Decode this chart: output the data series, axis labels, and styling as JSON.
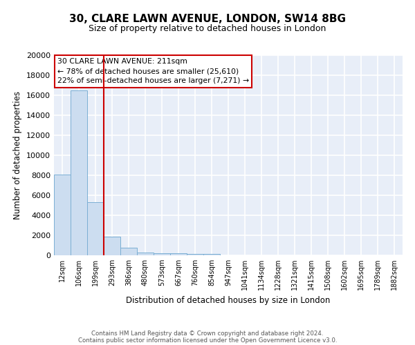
{
  "title1": "30, CLARE LAWN AVENUE, LONDON, SW14 8BG",
  "title2": "Size of property relative to detached houses in London",
  "xlabel": "Distribution of detached houses by size in London",
  "ylabel": "Number of detached properties",
  "categories": [
    "12sqm",
    "106sqm",
    "199sqm",
    "293sqm",
    "386sqm",
    "480sqm",
    "573sqm",
    "667sqm",
    "760sqm",
    "854sqm",
    "947sqm",
    "1041sqm",
    "1134sqm",
    "1228sqm",
    "1321sqm",
    "1415sqm",
    "1508sqm",
    "1602sqm",
    "1695sqm",
    "1789sqm",
    "1882sqm"
  ],
  "values": [
    8100,
    16500,
    5300,
    1850,
    750,
    300,
    230,
    175,
    150,
    130,
    0,
    0,
    0,
    0,
    0,
    0,
    0,
    0,
    0,
    0,
    0
  ],
  "bar_color": "#ccddf0",
  "bar_edge_color": "#7bafd4",
  "red_line_index": 2,
  "annotation_line1": "30 CLARE LAWN AVENUE: 211sqm",
  "annotation_line2": "← 78% of detached houses are smaller (25,610)",
  "annotation_line3": "22% of semi-detached houses are larger (7,271) →",
  "annotation_box_color": "#ffffff",
  "annotation_box_edge": "#cc0000",
  "background_color": "#e8eef8",
  "grid_color": "#ffffff",
  "ylim": [
    0,
    20000
  ],
  "yticks": [
    0,
    2000,
    4000,
    6000,
    8000,
    10000,
    12000,
    14000,
    16000,
    18000,
    20000
  ],
  "footer_line1": "Contains HM Land Registry data © Crown copyright and database right 2024.",
  "footer_line2": "Contains public sector information licensed under the Open Government Licence v3.0.",
  "red_line_color": "#cc0000",
  "title1_fontsize": 11,
  "title2_fontsize": 9
}
